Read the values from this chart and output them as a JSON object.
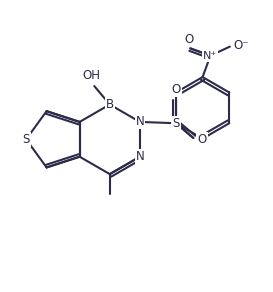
{
  "background": "#ffffff",
  "line_color": "#2c2c4a",
  "line_width": 1.5,
  "font_size": 8.5,
  "fig_width": 2.73,
  "fig_height": 2.92,
  "dpi": 100,
  "xlim": [
    0,
    10
  ],
  "ylim": [
    0,
    10.7
  ]
}
